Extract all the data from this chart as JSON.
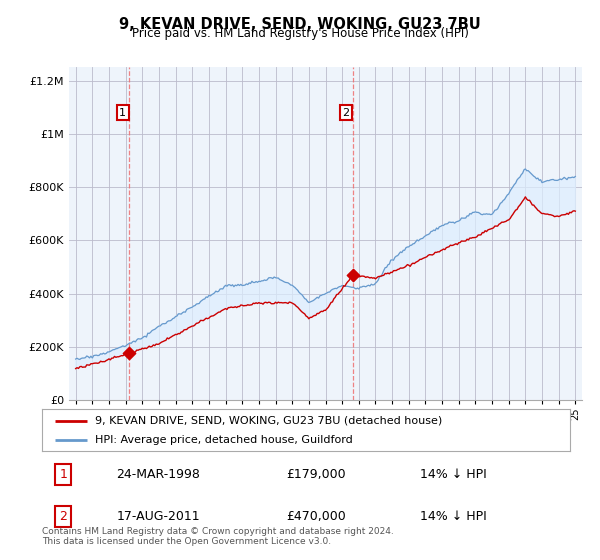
{
  "title": "9, KEVAN DRIVE, SEND, WOKING, GU23 7BU",
  "subtitle": "Price paid vs. HM Land Registry's House Price Index (HPI)",
  "legend_line1": "9, KEVAN DRIVE, SEND, WOKING, GU23 7BU (detached house)",
  "legend_line2": "HPI: Average price, detached house, Guildford",
  "sale1_date": "24-MAR-1998",
  "sale1_price": "£179,000",
  "sale1_hpi": "14% ↓ HPI",
  "sale1_year": 1998.23,
  "sale1_value": 179000,
  "sale2_date": "17-AUG-2011",
  "sale2_price": "£470,000",
  "sale2_hpi": "14% ↓ HPI",
  "sale2_year": 2011.63,
  "sale2_value": 470000,
  "property_color": "#cc0000",
  "hpi_color": "#6699cc",
  "fill_color": "#ddeeff",
  "chart_bg": "#eef4fb",
  "ylim": [
    0,
    1250000
  ],
  "xlim_start": 1994.6,
  "xlim_end": 2025.4,
  "footer": "Contains HM Land Registry data © Crown copyright and database right 2024.\nThis data is licensed under the Open Government Licence v3.0.",
  "yticks": [
    0,
    200000,
    400000,
    600000,
    800000,
    1000000,
    1200000
  ],
  "ytick_labels": [
    "£0",
    "£200K",
    "£400K",
    "£600K",
    "£800K",
    "£1M",
    "£1.2M"
  ]
}
